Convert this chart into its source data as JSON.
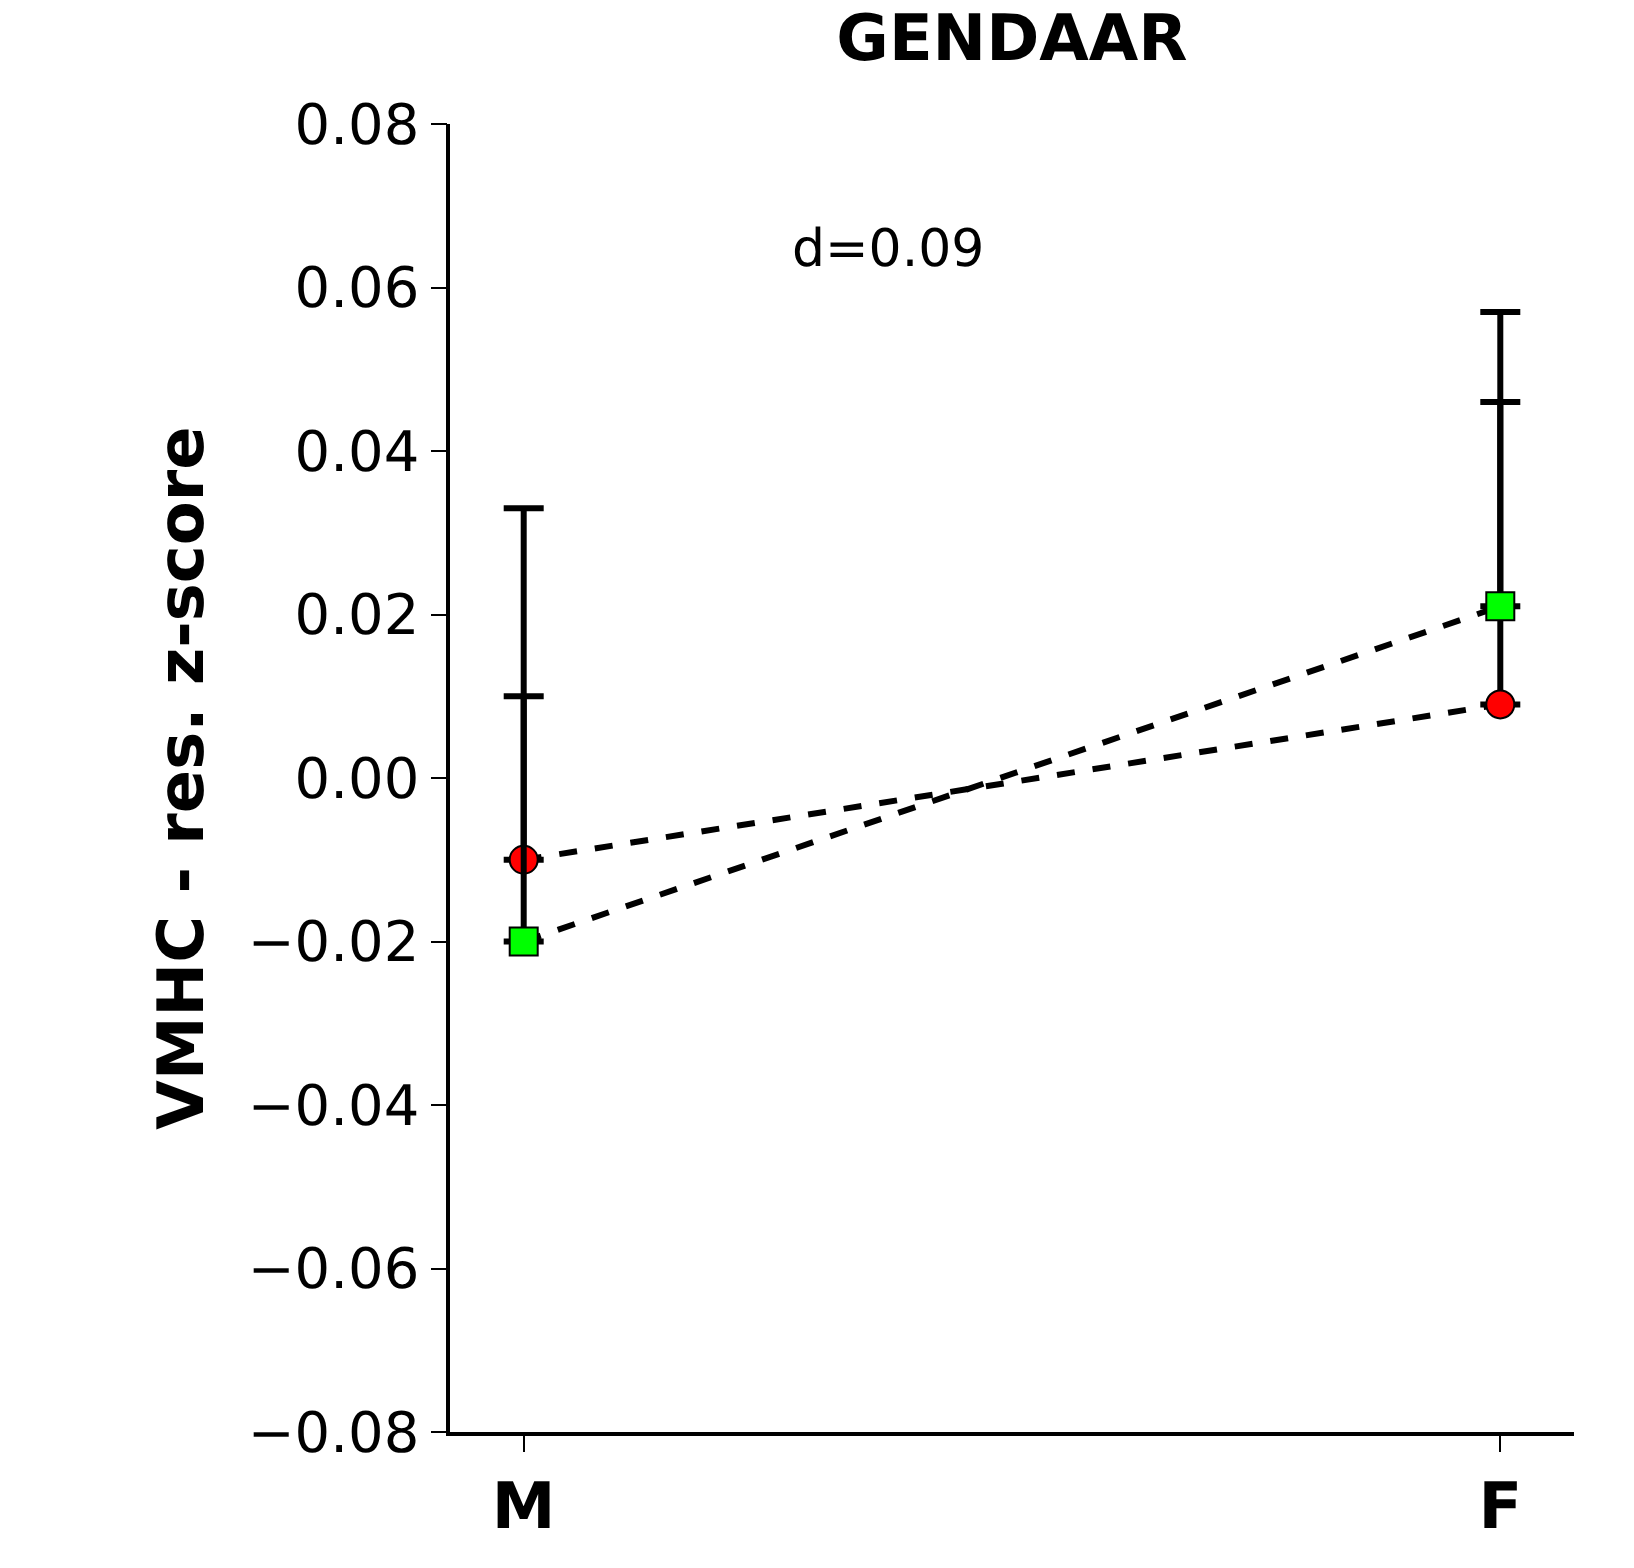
{
  "chart_data": {
    "type": "line",
    "title": "GENDAAR",
    "ylabel": "VMHC - res. z-score",
    "categories": [
      "M",
      "F"
    ],
    "series": [
      {
        "color": "#ff0000",
        "values": [
          -0.01,
          0.009
        ],
        "errors": [
          [
            -0.01,
            0.01
          ],
          [
            0.009,
            0.046
          ]
        ],
        "marker": "circle"
      },
      {
        "color": "#00ff00",
        "values": [
          -0.02,
          0.021
        ],
        "errors": [
          [
            -0.02,
            0.033
          ],
          [
            0.021,
            0.057
          ]
        ],
        "marker": "square"
      }
    ],
    "ylim": [
      -0.08,
      0.08
    ],
    "yticks": [
      {
        "value": -0.08,
        "label": "−0.08"
      },
      {
        "value": -0.06,
        "label": "−0.06"
      },
      {
        "value": -0.04,
        "label": "−0.04"
      },
      {
        "value": -0.02,
        "label": "−0.02"
      },
      "0.00",
      0.02,
      0.04,
      0.06,
      0.08
    ],
    "line_style": "dashed",
    "annotations": [
      "d=0.09"
    ]
  }
}
